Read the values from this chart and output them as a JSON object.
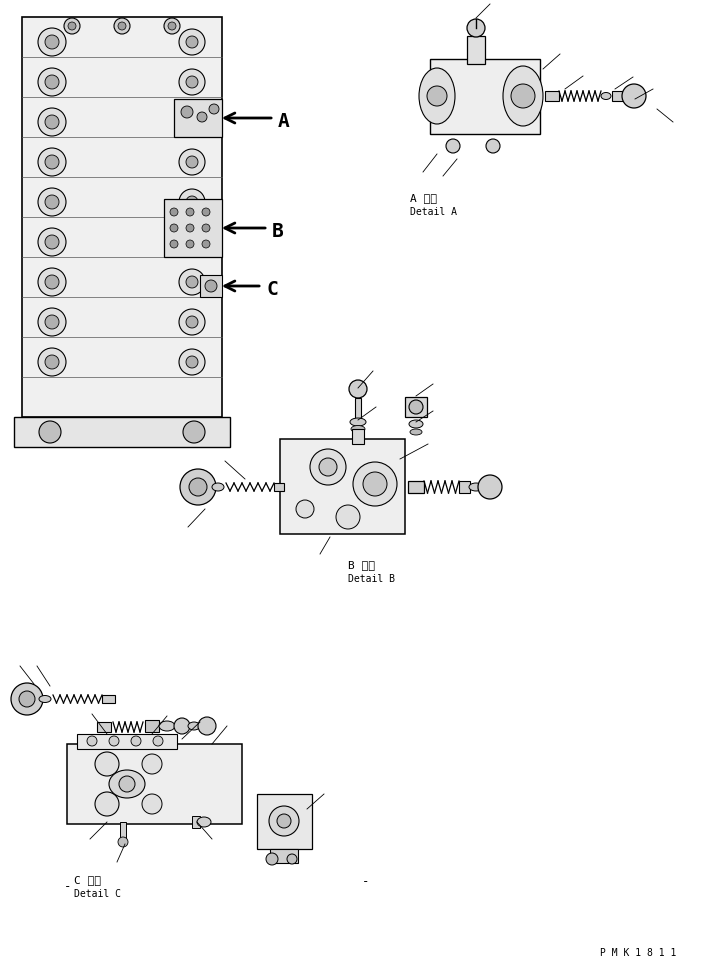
{
  "title": "",
  "background_color": "#ffffff",
  "line_color": "#000000",
  "text_color": "#000000",
  "watermark": "P M K 1 8 1 1",
  "label_A_jp": "A 詳細",
  "label_A_en": "Detail A",
  "label_B_jp": "B 詳細",
  "label_B_en": "Detail B",
  "label_C_jp": "C 詳細",
  "label_C_en": "Detail C",
  "fig_width": 7.28,
  "fig_height": 9.62,
  "dpi": 100
}
